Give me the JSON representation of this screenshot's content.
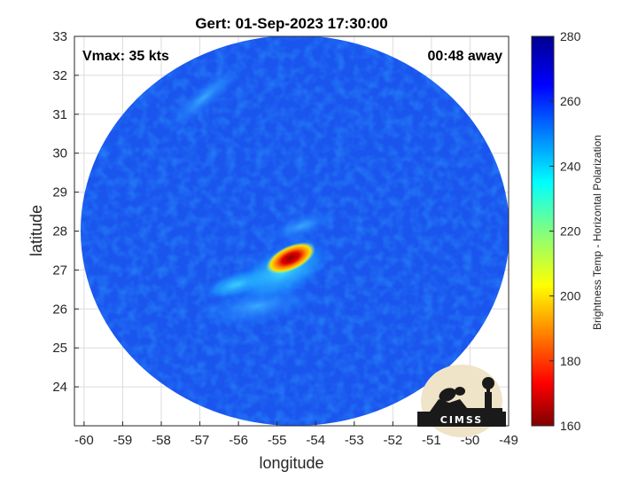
{
  "title": "Gert: 01-Sep-2023 17:30:00",
  "annotations": {
    "vmax": "Vmax: 35 kts",
    "away": "00:48 away"
  },
  "axes": {
    "xlabel": "longitude",
    "ylabel": "latitude",
    "xlim": [
      -60.25,
      -49
    ],
    "ylim": [
      23,
      33
    ],
    "xticks": [
      -60,
      -59,
      -58,
      -57,
      -56,
      -55,
      -54,
      -53,
      -52,
      -51,
      -50,
      -49
    ],
    "yticks": [
      24,
      25,
      26,
      27,
      28,
      29,
      30,
      31,
      32,
      33
    ],
    "grid": true
  },
  "colorbar": {
    "label": "Brightness Temp - Horizontal Polarization",
    "range": [
      160,
      280
    ],
    "ticks": [
      160,
      180,
      200,
      220,
      240,
      260,
      280
    ],
    "colormap": "jet"
  },
  "chart_data": {
    "type": "heatmap",
    "title": "Gert: 01-Sep-2023 17:30:00",
    "xlabel": "longitude",
    "ylabel": "latitude",
    "xlim": [
      -60.25,
      -49
    ],
    "ylim": [
      23,
      33
    ],
    "swath": {
      "center_lon": -54.7,
      "center_lat": 27.9,
      "radius_lon": 5.5,
      "radius_lat": 5.0
    },
    "background_temp": 262,
    "features": [
      {
        "name": "core",
        "lon": -54.6,
        "lat": 27.3,
        "min_temp": 172
      },
      {
        "name": "inner band",
        "lon": -54.8,
        "lat": 27.1,
        "min_temp": 230
      },
      {
        "name": "southwest band",
        "lon": -56.0,
        "lat": 26.6,
        "min_temp": 236
      },
      {
        "name": "southern band",
        "lon": -55.5,
        "lat": 26.1,
        "min_temp": 244
      },
      {
        "name": "northwest streak",
        "lon": -56.8,
        "lat": 31.1,
        "min_temp": 250
      }
    ],
    "colorbar": {
      "label": "Brightness Temp - Horizontal Polarization",
      "range": [
        160,
        280
      ]
    }
  },
  "logo": {
    "text": "CIMSS"
  }
}
